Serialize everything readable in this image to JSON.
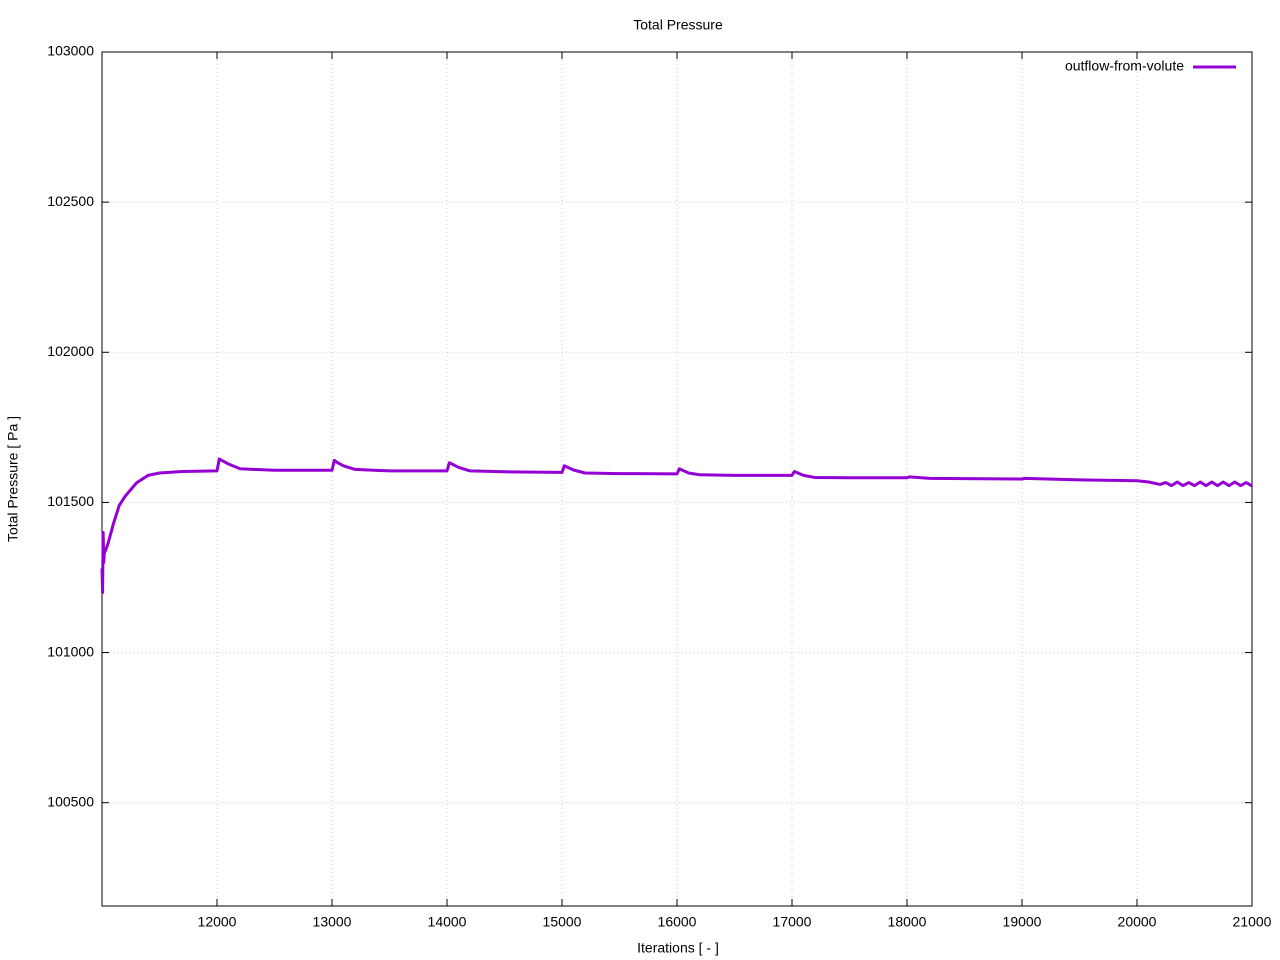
{
  "chart_data": {
    "type": "line",
    "title": "Total Pressure",
    "x_label": "Iterations [ - ]",
    "y_label": "Total Pressure [ Pa ]",
    "xlim": [
      11000,
      21000
    ],
    "ylim": [
      100156,
      103000
    ],
    "xticks": [
      12000,
      13000,
      14000,
      15000,
      16000,
      17000,
      18000,
      19000,
      20000,
      21000
    ],
    "yticks": [
      100500,
      101000,
      101500,
      102000,
      102500,
      103000
    ],
    "grid": true,
    "legend": "top-right",
    "series": [
      {
        "name": "outflow-from-volute",
        "color": "#9400d3",
        "x": [
          11000,
          11005,
          11010,
          11015,
          11020,
          11050,
          11100,
          11150,
          11200,
          11300,
          11400,
          11500,
          11700,
          12000,
          12020,
          12050,
          12100,
          12200,
          12500,
          13000,
          13020,
          13050,
          13100,
          13200,
          13500,
          14000,
          14020,
          14100,
          14200,
          14500,
          15000,
          15020,
          15100,
          15200,
          15500,
          16000,
          16020,
          16100,
          16200,
          16500,
          17000,
          17020,
          17100,
          17200,
          17500,
          18000,
          18020,
          18200,
          19000,
          19020,
          19500,
          20000,
          20100,
          20200,
          20250,
          20300,
          20350,
          20400,
          20450,
          20500,
          20550,
          20600,
          20650,
          20700,
          20750,
          20800,
          20850,
          20900,
          20950,
          21000
        ],
        "values": [
          101280,
          101200,
          101400,
          101300,
          101330,
          101360,
          101430,
          101490,
          101520,
          101565,
          101590,
          101598,
          101603,
          101605,
          101645,
          101638,
          101628,
          101612,
          101607,
          101607,
          101640,
          101632,
          101622,
          101610,
          101605,
          101605,
          101632,
          101617,
          101605,
          101602,
          101600,
          101622,
          101608,
          101598,
          101596,
          101595,
          101612,
          101598,
          101592,
          101590,
          101590,
          101603,
          101590,
          101583,
          101582,
          101582,
          101585,
          101580,
          101578,
          101580,
          101575,
          101572,
          101568,
          101560,
          101566,
          101556,
          101568,
          101556,
          101566,
          101556,
          101568,
          101556,
          101568,
          101556,
          101568,
          101556,
          101568,
          101556,
          101566,
          101555
        ]
      }
    ]
  }
}
